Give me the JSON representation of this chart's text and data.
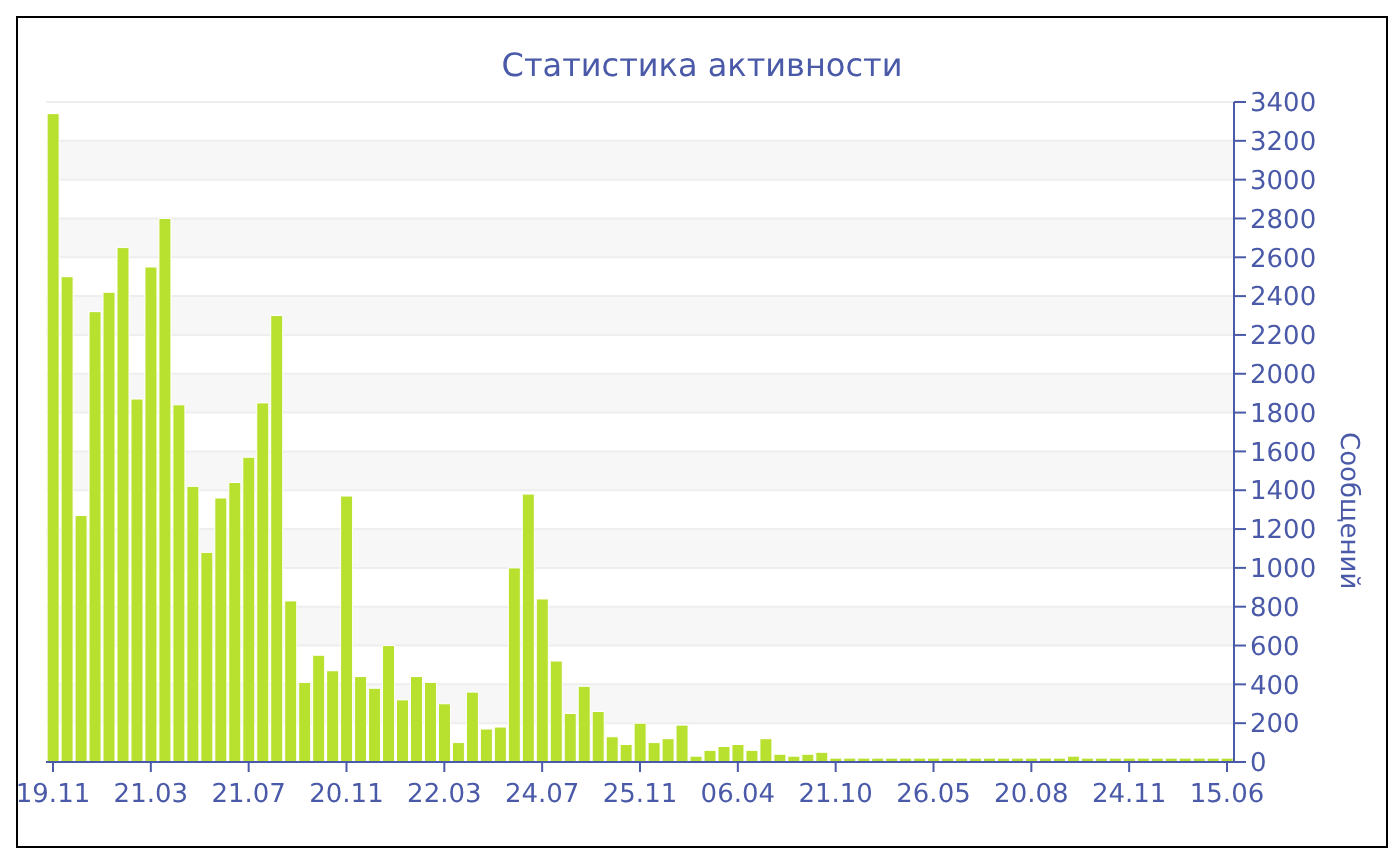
{
  "chart_data": {
    "type": "bar",
    "title": "Статистика активности",
    "ylabel": "Сообщений",
    "categories": [
      "19.11",
      null,
      null,
      null,
      null,
      null,
      null,
      "21.03",
      null,
      null,
      null,
      null,
      null,
      null,
      "21.07",
      null,
      null,
      null,
      null,
      null,
      null,
      "20.11",
      null,
      null,
      null,
      null,
      null,
      null,
      "22.03",
      null,
      null,
      null,
      null,
      null,
      null,
      "24.07",
      null,
      null,
      null,
      null,
      null,
      null,
      "25.11",
      null,
      null,
      null,
      null,
      null,
      null,
      "06.04",
      null,
      null,
      null,
      null,
      null,
      null,
      "21.10",
      null,
      null,
      null,
      null,
      null,
      null,
      "26.05",
      null,
      null,
      null,
      null,
      null,
      null,
      "20.08",
      null,
      null,
      null,
      null,
      null,
      null,
      "24.11",
      null,
      null,
      null,
      null,
      null,
      null,
      "15.06"
    ],
    "values": [
      3340,
      2500,
      1270,
      2320,
      2420,
      2650,
      1870,
      2550,
      2800,
      1840,
      1420,
      1080,
      1360,
      1440,
      1570,
      1850,
      2300,
      830,
      410,
      550,
      470,
      1370,
      440,
      380,
      600,
      320,
      440,
      410,
      300,
      100,
      360,
      170,
      180,
      1000,
      1380,
      840,
      520,
      250,
      390,
      260,
      130,
      90,
      200,
      100,
      120,
      190,
      30,
      60,
      80,
      90,
      60,
      120,
      40,
      30,
      40,
      50,
      20,
      20,
      20,
      20,
      20,
      20,
      20,
      20,
      20,
      20,
      20,
      20,
      20,
      20,
      20,
      20,
      20,
      30,
      20,
      20,
      20,
      20,
      20,
      20,
      20,
      20,
      20,
      20,
      20
    ],
    "color": "#b8e02e",
    "ylim": [
      0,
      3400
    ],
    "yticks": [
      0,
      200,
      400,
      600,
      800,
      1000,
      1200,
      1400,
      1600,
      1800,
      2000,
      2200,
      2400,
      2600,
      2800,
      3000,
      3200,
      3400
    ],
    "grid": "y"
  }
}
